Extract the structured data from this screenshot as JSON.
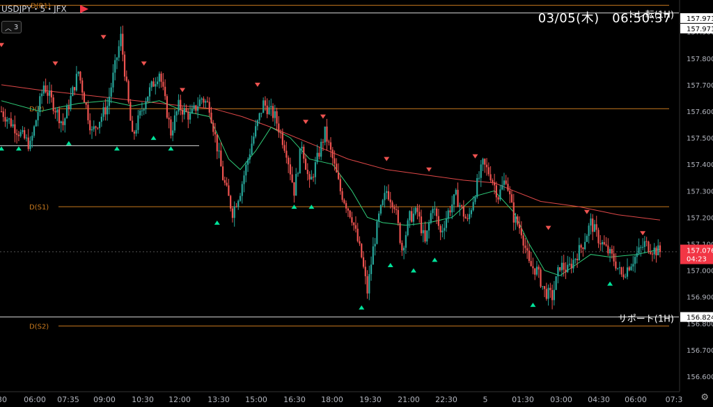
{
  "header": {
    "symbol": "USDJPY・5・JFX",
    "indicator_count": "3",
    "clock": "03/05(木)　06:50:37"
  },
  "colors": {
    "background": "#000000",
    "up": "#26a69a",
    "down": "#ef5350",
    "pivot": "#c97a1e",
    "ma_fast": "#2fcf7a",
    "ma_slow": "#e04848",
    "price_tag": "#f23645"
  },
  "chart_data": {
    "type": "candlestick",
    "symbol": "USDJPY",
    "timeframe": "5",
    "xlabels": [
      "30",
      "06:00",
      "07:35",
      "09:00",
      "10:30",
      "12:00",
      "13:30",
      "15:00",
      "16:30",
      "18:00",
      "19:30",
      "21:00",
      "22:30",
      "5",
      "01:30",
      "03:00",
      "04:30",
      "06:00",
      "07:3"
    ],
    "y_ticks": [
      "157.900",
      "157.800",
      "157.700",
      "157.600",
      "157.500",
      "157.400",
      "157.300",
      "157.200",
      "157.100",
      "157.000",
      "156.900",
      "156.800",
      "156.700",
      "156.600"
    ],
    "ylim": [
      156.55,
      158.02
    ],
    "levels": [
      {
        "label": "D(R1)",
        "value": 158.0,
        "kind": "pivot"
      },
      {
        "label": "D(P)",
        "value": 157.61,
        "kind": "pivot"
      },
      {
        "label": "D(S1)",
        "value": 157.24,
        "kind": "pivot"
      },
      {
        "label": "D(S2)",
        "value": 156.79,
        "kind": "pivot"
      },
      {
        "label": "トレ転(1H)",
        "value": 157.971,
        "kind": "white",
        "tag": "157.971"
      },
      {
        "label": "サポート(1H)",
        "value": 156.824,
        "kind": "white",
        "tag": "156.824"
      }
    ],
    "extra_tag": "157.971",
    "current_price": {
      "value": "157.076",
      "countdown": "04:23"
    },
    "anchors": [
      [
        0,
        157.6
      ],
      [
        15,
        157.47
      ],
      [
        22,
        157.7
      ],
      [
        32,
        157.55
      ],
      [
        40,
        157.75
      ],
      [
        47,
        157.52
      ],
      [
        55,
        157.62
      ],
      [
        62,
        157.88
      ],
      [
        68,
        157.5
      ],
      [
        75,
        157.65
      ],
      [
        82,
        157.75
      ],
      [
        88,
        157.52
      ],
      [
        92,
        157.62
      ],
      [
        98,
        157.58
      ],
      [
        104,
        157.65
      ],
      [
        108,
        157.62
      ],
      [
        115,
        157.35
      ],
      [
        120,
        157.22
      ],
      [
        124,
        157.3
      ],
      [
        130,
        157.48
      ],
      [
        136,
        157.63
      ],
      [
        142,
        157.58
      ],
      [
        148,
        157.45
      ],
      [
        152,
        157.3
      ],
      [
        156,
        157.48
      ],
      [
        160,
        157.32
      ],
      [
        164,
        157.42
      ],
      [
        168,
        157.52
      ],
      [
        172,
        157.42
      ],
      [
        176,
        157.3
      ],
      [
        182,
        157.2
      ],
      [
        187,
        157.05
      ],
      [
        190,
        156.92
      ],
      [
        193,
        157.08
      ],
      [
        196,
        157.2
      ],
      [
        200,
        157.3
      ],
      [
        204,
        157.25
      ],
      [
        208,
        157.08
      ],
      [
        212,
        157.2
      ],
      [
        216,
        157.22
      ],
      [
        220,
        157.1
      ],
      [
        224,
        157.25
      ],
      [
        228,
        157.14
      ],
      [
        232,
        157.22
      ],
      [
        236,
        157.28
      ],
      [
        242,
        157.18
      ],
      [
        246,
        157.3
      ],
      [
        250,
        157.4
      ],
      [
        254,
        157.36
      ],
      [
        258,
        157.28
      ],
      [
        262,
        157.35
      ],
      [
        266,
        157.2
      ],
      [
        270,
        157.15
      ],
      [
        274,
        157.02
      ],
      [
        278,
        157.0
      ],
      [
        282,
        156.92
      ],
      [
        286,
        156.9
      ],
      [
        290,
        157.02
      ],
      [
        294,
        157.0
      ],
      [
        298,
        157.05
      ],
      [
        302,
        157.1
      ],
      [
        306,
        157.18
      ],
      [
        310,
        157.12
      ],
      [
        314,
        157.08
      ],
      [
        318,
        157.04
      ],
      [
        322,
        156.98
      ],
      [
        326,
        157.02
      ],
      [
        330,
        157.06
      ],
      [
        334,
        157.1
      ],
      [
        338,
        157.08
      ],
      [
        342,
        157.07
      ]
    ],
    "ma_fast": [
      [
        0,
        157.64
      ],
      [
        20,
        157.6
      ],
      [
        40,
        157.63
      ],
      [
        55,
        157.64
      ],
      [
        68,
        157.62
      ],
      [
        82,
        157.64
      ],
      [
        95,
        157.6
      ],
      [
        108,
        157.58
      ],
      [
        118,
        157.42
      ],
      [
        124,
        157.38
      ],
      [
        132,
        157.45
      ],
      [
        140,
        157.54
      ],
      [
        150,
        157.5
      ],
      [
        160,
        157.42
      ],
      [
        172,
        157.4
      ],
      [
        182,
        157.3
      ],
      [
        190,
        157.2
      ],
      [
        198,
        157.18
      ],
      [
        210,
        157.17
      ],
      [
        222,
        157.18
      ],
      [
        234,
        157.2
      ],
      [
        246,
        157.28
      ],
      [
        256,
        157.3
      ],
      [
        266,
        157.22
      ],
      [
        274,
        157.1
      ],
      [
        282,
        157.0
      ],
      [
        290,
        156.98
      ],
      [
        298,
        157.02
      ],
      [
        306,
        157.06
      ],
      [
        316,
        157.05
      ],
      [
        330,
        157.06
      ],
      [
        342,
        157.08
      ]
    ],
    "ma_slow": [
      [
        0,
        157.7
      ],
      [
        20,
        157.68
      ],
      [
        45,
        157.66
      ],
      [
        70,
        157.64
      ],
      [
        95,
        157.62
      ],
      [
        110,
        157.61
      ],
      [
        125,
        157.58
      ],
      [
        140,
        157.54
      ],
      [
        160,
        157.48
      ],
      [
        180,
        157.42
      ],
      [
        200,
        157.38
      ],
      [
        220,
        157.36
      ],
      [
        240,
        157.34
      ],
      [
        256,
        157.33
      ],
      [
        266,
        157.3
      ],
      [
        280,
        157.26
      ],
      [
        300,
        157.24
      ],
      [
        320,
        157.21
      ],
      [
        342,
        157.19
      ]
    ],
    "markers": [
      {
        "type": "down",
        "i": 0,
        "value": 157.85
      },
      {
        "type": "down",
        "i": 28,
        "value": 157.78
      },
      {
        "type": "down",
        "i": 53,
        "value": 157.88
      },
      {
        "type": "down",
        "i": 74,
        "value": 157.78
      },
      {
        "type": "down",
        "i": 94,
        "value": 157.68
      },
      {
        "type": "down",
        "i": 133,
        "value": 157.7
      },
      {
        "type": "down",
        "i": 158,
        "value": 157.56
      },
      {
        "type": "down",
        "i": 167,
        "value": 157.58
      },
      {
        "type": "down",
        "i": 200,
        "value": 157.42
      },
      {
        "type": "down",
        "i": 222,
        "value": 157.38
      },
      {
        "type": "down",
        "i": 246,
        "value": 157.43
      },
      {
        "type": "down",
        "i": 284,
        "value": 157.16
      },
      {
        "type": "down",
        "i": 304,
        "value": 157.22
      },
      {
        "type": "down",
        "i": 333,
        "value": 157.14
      },
      {
        "type": "up",
        "i": 0,
        "value": 157.46
      },
      {
        "type": "up",
        "i": 9,
        "value": 157.46
      },
      {
        "type": "up",
        "i": 35,
        "value": 157.48
      },
      {
        "type": "up",
        "i": 60,
        "value": 157.46
      },
      {
        "type": "up",
        "i": 79,
        "value": 157.5
      },
      {
        "type": "up",
        "i": 88,
        "value": 157.46
      },
      {
        "type": "up",
        "i": 112,
        "value": 157.18
      },
      {
        "type": "up",
        "i": 152,
        "value": 157.24
      },
      {
        "type": "up",
        "i": 161,
        "value": 157.24
      },
      {
        "type": "up",
        "i": 187,
        "value": 156.86
      },
      {
        "type": "up",
        "i": 202,
        "value": 157.02
      },
      {
        "type": "up",
        "i": 214,
        "value": 157.0
      },
      {
        "type": "up",
        "i": 225,
        "value": 157.04
      },
      {
        "type": "up",
        "i": 276,
        "value": 156.87
      },
      {
        "type": "up",
        "i": 316,
        "value": 156.95
      }
    ]
  }
}
